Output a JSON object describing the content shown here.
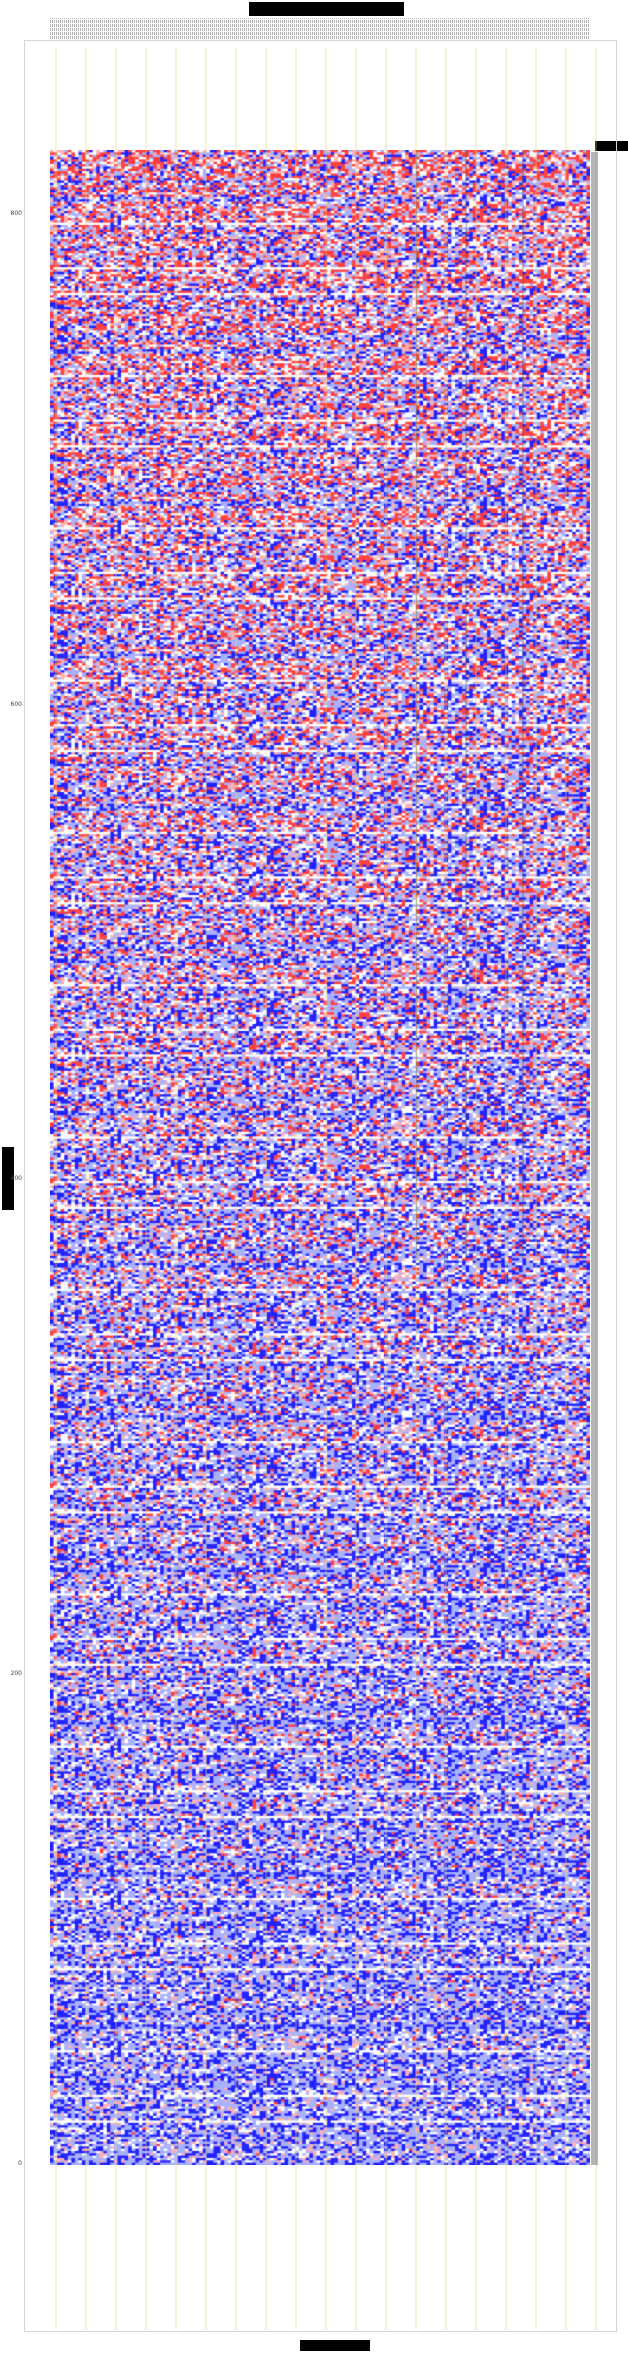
{
  "chart_data": {
    "type": "heatmap",
    "title": "",
    "xlabel": "",
    "ylabel": "",
    "y_ticks": [
      "800",
      "600",
      "400",
      "200",
      "0"
    ],
    "ylim": [
      0,
      900
    ],
    "n_columns": 152,
    "n_rows": 860,
    "colormap": [
      "#2222ff",
      "#a9b1ff",
      "#ffffff",
      "#ffb0b0",
      "#ff4040"
    ],
    "grid": true,
    "legend": "right"
  },
  "colors": {
    "grid_line": "#e6d070",
    "frame": "#d6d6d6",
    "redaction": "#000000"
  }
}
